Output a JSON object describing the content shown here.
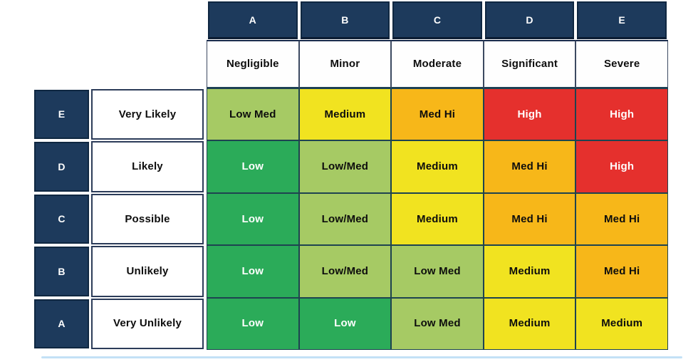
{
  "palette": {
    "navy": "#1d3a5c",
    "header_text": "#ffffff",
    "body_text": "#0d0d0d",
    "border_dark": "#0f2741",
    "grid_line": "#1e4350",
    "bottom_rule": "#b9dcf4"
  },
  "levels": {
    "low": {
      "bg": "#2bab59",
      "text": "#ffffff"
    },
    "low_med": {
      "bg": "#a6ca64",
      "text": "#0d0d0d"
    },
    "medium": {
      "bg": "#f1e320",
      "text": "#0d0d0d"
    },
    "med_hi": {
      "bg": "#f7b719",
      "text": "#0d0d0d"
    },
    "high": {
      "bg": "#e5302d",
      "text": "#ffffff"
    }
  },
  "chart_data": {
    "type": "heatmap",
    "x_letters": [
      "A",
      "B",
      "C",
      "D",
      "E"
    ],
    "x_labels": [
      "Negligible",
      "Minor",
      "Moderate",
      "Significant",
      "Severe"
    ],
    "y_letters": [
      "E",
      "D",
      "C",
      "B",
      "A"
    ],
    "y_labels": [
      "Very Likely",
      "Likely",
      "Possible",
      "Unlikely",
      "Very Unlikely"
    ],
    "values": [
      [
        "Low Med",
        "Medium",
        "Med Hi",
        "High",
        "High"
      ],
      [
        "Low",
        "Low/Med",
        "Medium",
        "Med Hi",
        "High"
      ],
      [
        "Low",
        "Low/Med",
        "Medium",
        "Med Hi",
        "Med Hi"
      ],
      [
        "Low",
        "Low/Med",
        "Low Med",
        "Medium",
        "Med Hi"
      ],
      [
        "Low",
        "Low",
        "Low Med",
        "Medium",
        "Medium"
      ]
    ],
    "legend": "none",
    "grid": "on"
  }
}
